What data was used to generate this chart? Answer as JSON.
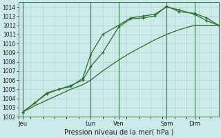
{
  "xlabel": "Pression niveau de la mer( hPa )",
  "ylim": [
    1002,
    1014.5
  ],
  "xlim": [
    0,
    100
  ],
  "yticks": [
    1002,
    1003,
    1004,
    1005,
    1006,
    1007,
    1008,
    1009,
    1010,
    1011,
    1012,
    1013,
    1014
  ],
  "xtick_positions": [
    2,
    36,
    50,
    74,
    88
  ],
  "xtick_labels": [
    "Jeu",
    "Lun",
    "Ven",
    "Sam",
    "Dim"
  ],
  "vlines": [
    2,
    36,
    50,
    74,
    88
  ],
  "bg_color": "#cceae8",
  "grid_color": "#aad4d0",
  "line_color": "#2d6b2d",
  "line1_x": [
    2,
    8,
    14,
    20,
    26,
    32,
    36,
    42,
    50,
    56,
    62,
    68,
    74,
    80,
    88,
    94,
    100
  ],
  "line1_y": [
    1002.5,
    1003.2,
    1003.8,
    1004.4,
    1005.0,
    1005.5,
    1006.0,
    1007.0,
    1008.2,
    1009.0,
    1009.7,
    1010.4,
    1011.0,
    1011.5,
    1012.0,
    1012.0,
    1012.0
  ],
  "line2_x": [
    2,
    8,
    14,
    20,
    26,
    32,
    36,
    42,
    50,
    56,
    62,
    68,
    74,
    80,
    88,
    94,
    100
  ],
  "line2_y": [
    1002.5,
    1003.5,
    1004.5,
    1005.0,
    1005.3,
    1006.2,
    1008.8,
    1011.0,
    1012.0,
    1012.8,
    1013.0,
    1013.2,
    1014.0,
    1013.7,
    1013.2,
    1012.5,
    1012.0
  ],
  "line3_x": [
    2,
    8,
    14,
    20,
    26,
    32,
    36,
    42,
    50,
    56,
    62,
    68,
    74,
    80,
    88,
    94,
    100
  ],
  "line3_y": [
    1002.5,
    1003.5,
    1004.6,
    1005.0,
    1005.4,
    1006.0,
    1007.5,
    1009.0,
    1011.8,
    1012.7,
    1012.8,
    1013.0,
    1014.1,
    1013.5,
    1013.3,
    1012.8,
    1012.0
  ]
}
